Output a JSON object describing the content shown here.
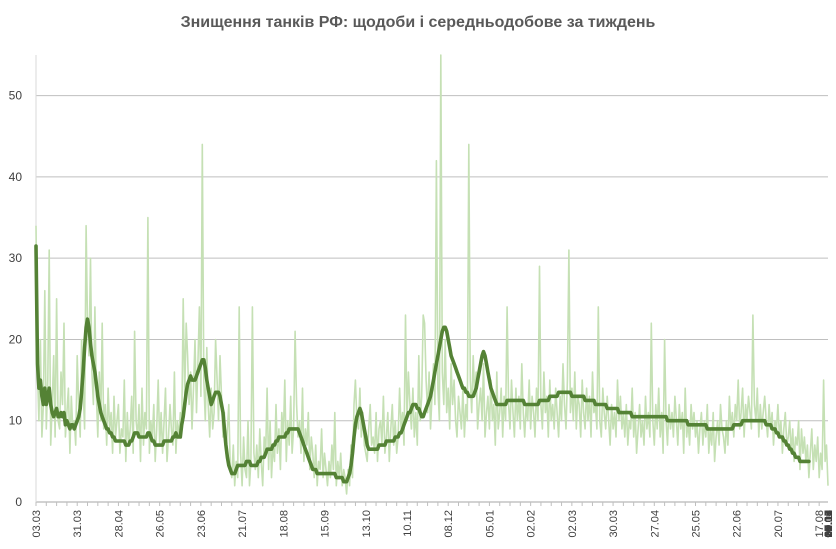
{
  "chart_data": {
    "type": "line",
    "title": "Знищення танків РФ: щодоби і середньодобове за тиждень",
    "xlabel": "",
    "ylabel": "",
    "ylim": [
      0,
      55
    ],
    "y_ticks": [
      0,
      10,
      20,
      30,
      40,
      50
    ],
    "grid": true,
    "x_tick_labels": [
      "03.03",
      "31.03",
      "28.04",
      "26.05",
      "23.06",
      "21.07",
      "18.08",
      "15.09",
      "13.10",
      "10.11",
      "08.12",
      "05.01",
      "02.02",
      "02.03",
      "30.03",
      "27.04",
      "25.05",
      "22.06",
      "20.07",
      "17.08",
      "14.09",
      "12.10",
      "09.11",
      "07.12",
      "04.01",
      "01.02",
      "29.02",
      "28.03",
      "25.04",
      "23.05",
      "20.06",
      "18.07",
      "15.08",
      "12.09",
      "10.10",
      "07.11",
      "05.12",
      "02.01",
      "30.01",
      "27.02",
      "27.03",
      "24.04",
      "22.05"
    ],
    "points_per_tick": 28,
    "colors": {
      "daily": "#c5e0b4",
      "weekly_avg": "#548235",
      "grid": "#bfbfbf"
    },
    "series": [
      {
        "id": "daily",
        "values": [
          34,
          16,
          10,
          20,
          8,
          12,
          26,
          9,
          15,
          31,
          7,
          12,
          18,
          8,
          25,
          10,
          9,
          16,
          12,
          22,
          8,
          11,
          14,
          6,
          13,
          9,
          10,
          7,
          18,
          12,
          8,
          20,
          14,
          9,
          34,
          22,
          18,
          30,
          16,
          12,
          24,
          13,
          8,
          16,
          10,
          22,
          9,
          12,
          7,
          14,
          9,
          11,
          6,
          13,
          8,
          10,
          12,
          6,
          9,
          8,
          15,
          5,
          11,
          7,
          9,
          13,
          6,
          21,
          10,
          8,
          12,
          5,
          14,
          7,
          11,
          9,
          35,
          6,
          10,
          8,
          12,
          5,
          9,
          15,
          7,
          11,
          6,
          10,
          14,
          5,
          8,
          12,
          9,
          7,
          16,
          6,
          10,
          8,
          11,
          9,
          25,
          13,
          22,
          18,
          12,
          16,
          9,
          14,
          20,
          11,
          17,
          24,
          13,
          44,
          15,
          10,
          19,
          12,
          8,
          14,
          9,
          11,
          20,
          15,
          10,
          18,
          13,
          8,
          11,
          6,
          9,
          12,
          4,
          3,
          7,
          2,
          5,
          3,
          24,
          6,
          2,
          8,
          4,
          3,
          10,
          2,
          5,
          24,
          6,
          4,
          7,
          3,
          9,
          5,
          2,
          8,
          6,
          14,
          4,
          10,
          3,
          7,
          5,
          12,
          6,
          9,
          4,
          11,
          8,
          15,
          5,
          10,
          7,
          13,
          6,
          9,
          21,
          12,
          8,
          10,
          6,
          14,
          5,
          9,
          7,
          11,
          4,
          8,
          6,
          3,
          7,
          2,
          5,
          4,
          9,
          3,
          6,
          4,
          2,
          5,
          3,
          7,
          4,
          11,
          2,
          5,
          3,
          6,
          2,
          4,
          3,
          1,
          4,
          2,
          7,
          3,
          12,
          15,
          10,
          9,
          14,
          8,
          11,
          7,
          6,
          5,
          9,
          12,
          7,
          8,
          6,
          11,
          5,
          9,
          10,
          7,
          13,
          6,
          8,
          11,
          5,
          9,
          12,
          7,
          10,
          6,
          8,
          14,
          9,
          11,
          7,
          23,
          10,
          16,
          12,
          9,
          14,
          8,
          11,
          7,
          18,
          10,
          13,
          23,
          22,
          15,
          11,
          16,
          9,
          13,
          17,
          12,
          42,
          14,
          10,
          55,
          16,
          12,
          20,
          11,
          14,
          9,
          17,
          12,
          15,
          10,
          8,
          13,
          11,
          9,
          14,
          8,
          12,
          10,
          44,
          15,
          11,
          18,
          13,
          16,
          9,
          12,
          14,
          10,
          17,
          8,
          11,
          13,
          9,
          15,
          10,
          12,
          7,
          16,
          9,
          11,
          14,
          8,
          13,
          10,
          24,
          12,
          9,
          15,
          11,
          8,
          14,
          10,
          13,
          9,
          17,
          11,
          8,
          12,
          10,
          15,
          9,
          13,
          11,
          8,
          14,
          10,
          29,
          12,
          9,
          16,
          11,
          13,
          8,
          15,
          10,
          12,
          9,
          14,
          11,
          8,
          13,
          10,
          17,
          12,
          9,
          15,
          31,
          11,
          14,
          10,
          16,
          9,
          13,
          12,
          8,
          15,
          11,
          9,
          14,
          10,
          13,
          8,
          16,
          11,
          12,
          9,
          24,
          10,
          8,
          14,
          11,
          9,
          13,
          10,
          7,
          12,
          9,
          11,
          8,
          15,
          10,
          13,
          9,
          11,
          8,
          12,
          7,
          10,
          9,
          14,
          8,
          11,
          6,
          9,
          12,
          8,
          10,
          7,
          13,
          9,
          11,
          8,
          22,
          10,
          7,
          12,
          9,
          14,
          8,
          11,
          6,
          20,
          10,
          7,
          12,
          9,
          11,
          8,
          13,
          10,
          7,
          12,
          9,
          11,
          6,
          14,
          8,
          10,
          7,
          12,
          9,
          11,
          8,
          10,
          6,
          9,
          11,
          7,
          10,
          8,
          12,
          6,
          9,
          7,
          11,
          5,
          8,
          10,
          7,
          12,
          9,
          8,
          6,
          10,
          7,
          13,
          9,
          11,
          8,
          12,
          10,
          15,
          9,
          11,
          14,
          8,
          12,
          10,
          13,
          11,
          9,
          23,
          12,
          10,
          14,
          8,
          12,
          9,
          11,
          13,
          10,
          8,
          12,
          9,
          11,
          7,
          10,
          9,
          12,
          8,
          10,
          6,
          9,
          11,
          7,
          8,
          10,
          6,
          9,
          5,
          8,
          7,
          10,
          4,
          9,
          6,
          8,
          5,
          7,
          3,
          6,
          9,
          4,
          7,
          5,
          8,
          3,
          6,
          4,
          15,
          5,
          7,
          2
        ]
      },
      {
        "id": "weekly_avg",
        "values": [
          31.5,
          17,
          14,
          15,
          13,
          12,
          14,
          12,
          13,
          14,
          12,
          11,
          10.5,
          11,
          11.5,
          10.5,
          10.5,
          11,
          10.5,
          11,
          9.5,
          10,
          9.5,
          9,
          9.5,
          9.5,
          9,
          9.5,
          10,
          10.5,
          11.5,
          13.5,
          16,
          19,
          21.5,
          22.5,
          21.5,
          19.5,
          18,
          17,
          16,
          14.5,
          13,
          12,
          11,
          10.5,
          10,
          9.5,
          9,
          9,
          8.5,
          8.5,
          8,
          8,
          7.5,
          7.5,
          7.5,
          7.5,
          7.5,
          7.5,
          7.5,
          7,
          7,
          7,
          7.5,
          7.5,
          8,
          8.5,
          8.5,
          8.5,
          8,
          8,
          8,
          8,
          8,
          8,
          8.5,
          8.5,
          8,
          7.5,
          7.5,
          7,
          7,
          7,
          7,
          7,
          7,
          7.5,
          7.5,
          7.5,
          7.5,
          7.5,
          7.5,
          8,
          8,
          8.5,
          8,
          8,
          8,
          9.5,
          10.5,
          12,
          13.5,
          14.5,
          15,
          15.5,
          15,
          15,
          15,
          15.5,
          16,
          16.5,
          17,
          17.5,
          17.5,
          16.5,
          15,
          14,
          13,
          12,
          12.5,
          13,
          13.5,
          13.5,
          13.5,
          13,
          12,
          11,
          9,
          7,
          5.5,
          4.5,
          4,
          3.5,
          3.5,
          3.5,
          4,
          4.5,
          4.5,
          4.5,
          4.5,
          4.5,
          4.5,
          5,
          5,
          5,
          4.5,
          4.5,
          4.5,
          4.5,
          4.5,
          5,
          5,
          5.5,
          5.5,
          5.5,
          6,
          6.5,
          6.5,
          6.5,
          6.5,
          7,
          7,
          7.5,
          7.5,
          8,
          8,
          8,
          8,
          8,
          8.5,
          8.5,
          9,
          9,
          9,
          9,
          9,
          9,
          9,
          8.5,
          8,
          7.5,
          7,
          6.5,
          6,
          5.5,
          5,
          4.5,
          4,
          4,
          4,
          3.5,
          3.5,
          3.5,
          3.5,
          3.5,
          3.5,
          3.5,
          3.5,
          3.5,
          3.5,
          3.5,
          3.5,
          3.5,
          3,
          3,
          3,
          3,
          3,
          2.5,
          2.5,
          2.5,
          3,
          3.5,
          4.5,
          6,
          8,
          9.5,
          10.5,
          11,
          11.5,
          11,
          10,
          9,
          8,
          7,
          6.5,
          6.5,
          6.5,
          6.5,
          6.5,
          6.5,
          6.5,
          7,
          7,
          7,
          7,
          7,
          7.5,
          7.5,
          7.5,
          7.5,
          7.5,
          7.5,
          8,
          8,
          8,
          8.5,
          8.5,
          9,
          9.5,
          10,
          10.5,
          11,
          11,
          11.5,
          12,
          12,
          12,
          11.5,
          11.5,
          11,
          10.5,
          10.5,
          11,
          11.5,
          12,
          12.5,
          13,
          14,
          15,
          16,
          17,
          18,
          19,
          20,
          21,
          21.5,
          21.5,
          21,
          20,
          19,
          18,
          17.5,
          17,
          16.5,
          16,
          15.5,
          15,
          14.5,
          14,
          14,
          13.5,
          13.5,
          13,
          13,
          13,
          13,
          13.5,
          14,
          15,
          16,
          17,
          18,
          18.5,
          18,
          17,
          16,
          15,
          14,
          13.5,
          13,
          12.5,
          12,
          12,
          12,
          12,
          12,
          12,
          12,
          12.5,
          12.5,
          12.5,
          12.5,
          12.5,
          12.5,
          12.5,
          12.5,
          12.5,
          12.5,
          12.5,
          12.5,
          12,
          12,
          12,
          12,
          12,
          12,
          12,
          12,
          12,
          12,
          12.5,
          12.5,
          12.5,
          12.5,
          12.5,
          12.5,
          12.5,
          13,
          13,
          13,
          13,
          13,
          13,
          13.5,
          13.5,
          13.5,
          13.5,
          13.5,
          13.5,
          13.5,
          13.5,
          13.5,
          13,
          13,
          13,
          13,
          13,
          13,
          13,
          13,
          13,
          12.5,
          12.5,
          12.5,
          12.5,
          12.5,
          12.5,
          12.5,
          12,
          12,
          12,
          12,
          12,
          12,
          12,
          12,
          11.5,
          11.5,
          11.5,
          11.5,
          11.5,
          11.5,
          11.5,
          11.5,
          11,
          11,
          11,
          11,
          11,
          11,
          11,
          11,
          11,
          10.5,
          10.5,
          10.5,
          10.5,
          10.5,
          10.5,
          10.5,
          10.5,
          10.5,
          10.5,
          10.5,
          10.5,
          10.5,
          10.5,
          10.5,
          10.5,
          10.5,
          10.5,
          10.5,
          10.5,
          10.5,
          10.5,
          10.5,
          10.5,
          10,
          10,
          10,
          10,
          10,
          10,
          10,
          10,
          10,
          10,
          10,
          10,
          10,
          10,
          9.5,
          9.5,
          9.5,
          9.5,
          9.5,
          9.5,
          9.5,
          9.5,
          9.5,
          9.5,
          9.5,
          9.5,
          9.5,
          9,
          9,
          9,
          9,
          9,
          9,
          9,
          9,
          9,
          9,
          9,
          9,
          9,
          9,
          9,
          9,
          9,
          9,
          9.5,
          9.5,
          9.5,
          9.5,
          9.5,
          9.5,
          10,
          10,
          10,
          10,
          10,
          10,
          10,
          10,
          10,
          10,
          10,
          10,
          10,
          10,
          10,
          10,
          9.5,
          9.5,
          9.5,
          9.5,
          9,
          9,
          9,
          8.5,
          8.5,
          8,
          8,
          8,
          7.5,
          7.5,
          7,
          7,
          6.5,
          6.5,
          6,
          6,
          5.5,
          5.5,
          5.5,
          5,
          5,
          5,
          5,
          5,
          5,
          5
        ]
      }
    ]
  }
}
